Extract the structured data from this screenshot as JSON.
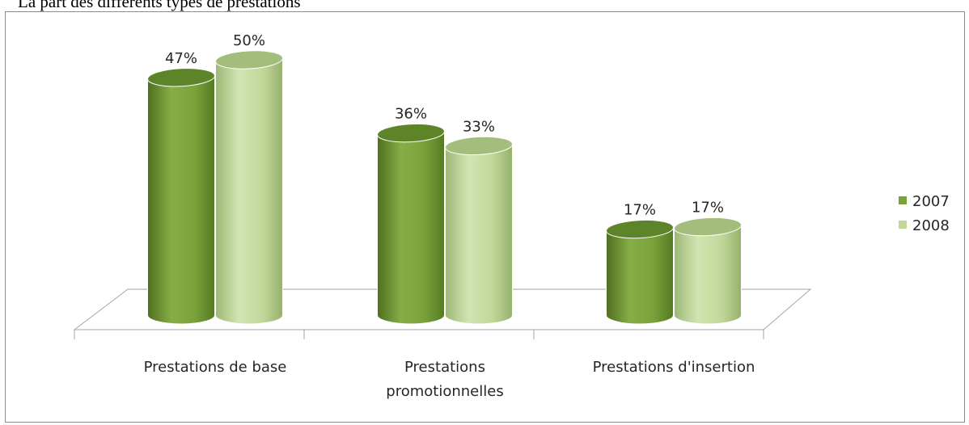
{
  "chart_title": "La part des différents types de prestations",
  "chart_data": {
    "type": "bar",
    "title": "La part des différents types de prestations",
    "categories": [
      [
        "Prestations de base"
      ],
      [
        "Prestations",
        "promotionnelles"
      ],
      [
        "Prestations d'insertion"
      ]
    ],
    "series": [
      {
        "name": "2007",
        "values": [
          47,
          36,
          17
        ],
        "labels": [
          "47%",
          "36%",
          "17%"
        ],
        "color": "#7aa23a"
      },
      {
        "name": "2008",
        "values": [
          50,
          33,
          17
        ],
        "labels": [
          "50%",
          "33%",
          "17%"
        ],
        "color": "#c2d89a"
      }
    ],
    "unit": "%",
    "ylim": [
      0,
      50
    ],
    "legend_position": "right",
    "grid": false
  }
}
